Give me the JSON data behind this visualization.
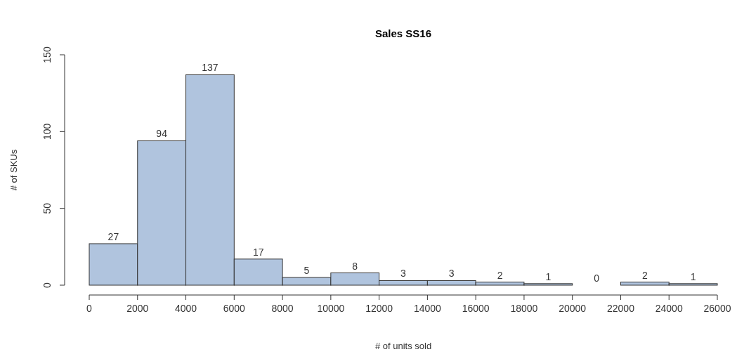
{
  "chart_data": {
    "type": "histogram",
    "title": "Sales SS16",
    "xlabel": "# of units sold",
    "ylabel": "# of SKUs",
    "bins": [
      0,
      2000,
      4000,
      6000,
      8000,
      10000,
      12000,
      14000,
      16000,
      18000,
      20000,
      22000,
      24000,
      26000
    ],
    "values": [
      27,
      94,
      137,
      17,
      5,
      8,
      3,
      3,
      2,
      1,
      0,
      2,
      1
    ],
    "color": "#b0c4de",
    "data_labels": true,
    "xlim": [
      0,
      26000
    ],
    "xticks": [
      0,
      2000,
      4000,
      6000,
      8000,
      10000,
      12000,
      14000,
      16000,
      18000,
      20000,
      22000,
      24000,
      26000
    ],
    "ylim": [
      0,
      150
    ],
    "yticks": [
      0,
      50,
      100,
      150
    ]
  }
}
